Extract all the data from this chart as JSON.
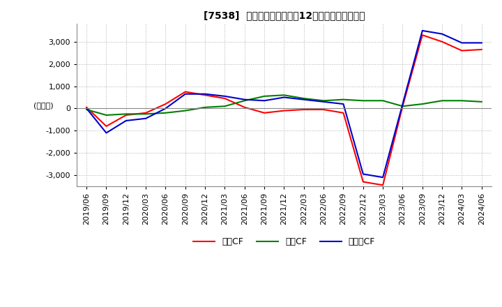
{
  "title": "[7538]  キャッシュフローの12か月移動合計の推移",
  "ylabel": "(百万円)",
  "ylim": [
    -3500,
    3800
  ],
  "yticks": [
    -3000,
    -2000,
    -1000,
    0,
    1000,
    2000,
    3000
  ],
  "background_color": "#ffffff",
  "grid_color": "#b0b0b0",
  "dates": [
    "2019/06",
    "2019/09",
    "2019/12",
    "2020/03",
    "2020/06",
    "2020/09",
    "2020/12",
    "2021/03",
    "2021/06",
    "2021/09",
    "2021/12",
    "2022/03",
    "2022/06",
    "2022/09",
    "2022/12",
    "2023/03",
    "2023/06",
    "2023/09",
    "2023/12",
    "2024/03",
    "2024/06"
  ],
  "operating_cf": [
    50,
    -800,
    -300,
    -200,
    200,
    750,
    600,
    450,
    50,
    -200,
    -100,
    -50,
    -50,
    -200,
    -3300,
    -3450,
    100,
    3300,
    3000,
    2600,
    2650
  ],
  "investing_cf": [
    -50,
    -300,
    -250,
    -250,
    -200,
    -100,
    50,
    100,
    350,
    550,
    600,
    450,
    350,
    400,
    350,
    350,
    100,
    200,
    350,
    350,
    300
  ],
  "free_cf": [
    0,
    -1100,
    -550,
    -450,
    0,
    650,
    650,
    550,
    400,
    350,
    500,
    400,
    300,
    200,
    -2950,
    -3100,
    200,
    3500,
    3350,
    2950,
    2950
  ],
  "operating_color": "#ff0000",
  "investing_color": "#008000",
  "free_color": "#0000cc",
  "legend_labels": [
    "営業CF",
    "投資CF",
    "フリーCF"
  ]
}
